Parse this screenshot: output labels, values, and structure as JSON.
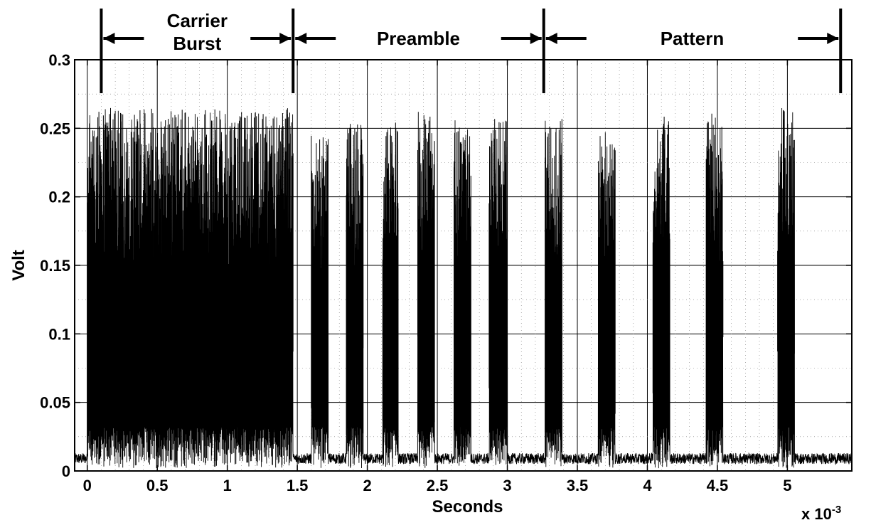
{
  "chart_data": {
    "type": "line",
    "xlabel": "Seconds",
    "ylabel": "Volt",
    "x_multiplier": "x 10",
    "x_multiplier_exp": "-3",
    "xlim": [
      -9e-05,
      0.00546
    ],
    "ylim": [
      0,
      0.3
    ],
    "x_ticks": [
      0,
      0.0005,
      0.001,
      0.0015,
      0.002,
      0.0025,
      0.003,
      0.0035,
      0.004,
      0.0045,
      0.005
    ],
    "x_tick_labels": [
      "0",
      "0.5",
      "1",
      "1.5",
      "2",
      "2.5",
      "3",
      "3.5",
      "4",
      "4.5",
      "5"
    ],
    "y_ticks": [
      0,
      0.05,
      0.1,
      0.15,
      0.2,
      0.25,
      0.3
    ],
    "y_tick_labels": [
      "0",
      "0.05",
      "0.1",
      "0.15",
      "0.2",
      "0.25",
      "0.3"
    ],
    "grid": true,
    "baseline_level": 0.009,
    "bursts": [
      {
        "start": 0.0,
        "end": 0.00147,
        "peak": 0.265
      },
      {
        "start": 0.0016,
        "end": 0.00172,
        "peak": 0.245
      },
      {
        "start": 0.00185,
        "end": 0.00197,
        "peak": 0.255
      },
      {
        "start": 0.00211,
        "end": 0.00222,
        "peak": 0.255
      },
      {
        "start": 0.00236,
        "end": 0.00248,
        "peak": 0.262
      },
      {
        "start": 0.00262,
        "end": 0.00274,
        "peak": 0.262
      },
      {
        "start": 0.00287,
        "end": 0.003,
        "peak": 0.258
      },
      {
        "start": 0.00327,
        "end": 0.00339,
        "peak": 0.258
      },
      {
        "start": 0.00365,
        "end": 0.00377,
        "peak": 0.255
      },
      {
        "start": 0.00404,
        "end": 0.00416,
        "peak": 0.262
      },
      {
        "start": 0.00442,
        "end": 0.00454,
        "peak": 0.262
      },
      {
        "start": 0.00493,
        "end": 0.00505,
        "peak": 0.265
      }
    ],
    "segments": [
      {
        "label": [
          "Carrier",
          "Burst"
        ],
        "start": 0.0001,
        "end": 0.00147
      },
      {
        "label": [
          "Preamble"
        ],
        "start": 0.00147,
        "end": 0.00326
      },
      {
        "label": [
          "Pattern"
        ],
        "start": 0.00326,
        "end": 0.00538
      }
    ]
  }
}
